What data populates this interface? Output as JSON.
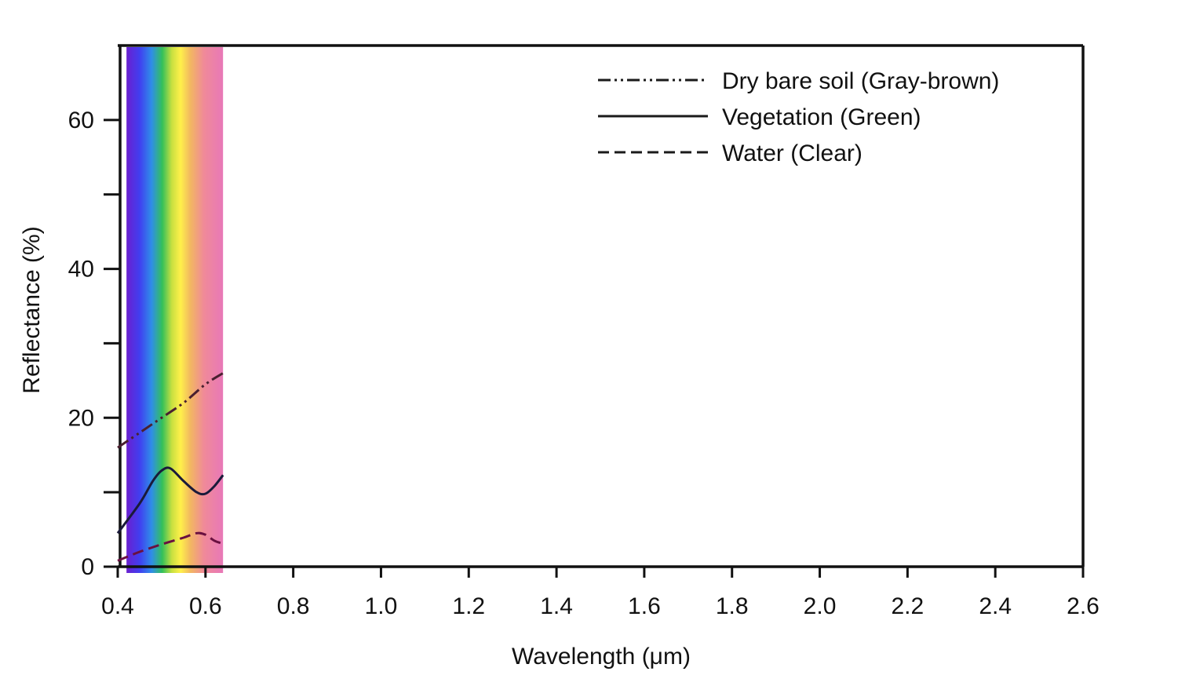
{
  "chart_data": {
    "type": "line",
    "xlabel": "Wavelength (μm)",
    "ylabel": "Reflectance (%)",
    "xlim": [
      0.4,
      2.6
    ],
    "ylim": [
      0,
      70
    ],
    "x_ticks": [
      "0.4",
      "0.6",
      "0.8",
      "1.0",
      "1.2",
      "1.4",
      "1.6",
      "1.8",
      "2.0",
      "2.2",
      "2.4",
      "2.6"
    ],
    "x_tick_values": [
      0.4,
      0.6,
      0.8,
      1.0,
      1.2,
      1.4,
      1.6,
      1.8,
      2.0,
      2.2,
      2.4,
      2.6
    ],
    "y_ticks": [
      "0",
      "20",
      "40",
      "60"
    ],
    "y_tick_values": [
      0,
      20,
      40,
      60
    ],
    "y_minor_ticks": [
      10,
      30,
      50
    ],
    "legend_position": "top-right",
    "grid": false,
    "visible_spectrum_band": {
      "from": 0.42,
      "to": 0.64
    },
    "series": [
      {
        "name": "Dry bare soil (Gray-brown)",
        "style": "dash-dot-dot",
        "color": "#4a2030",
        "x": [
          0.4,
          0.45,
          0.5,
          0.55,
          0.6,
          0.64
        ],
        "y": [
          16.0,
          18.0,
          20.0,
          22.0,
          24.5,
          26.0
        ]
      },
      {
        "name": "Vegetation (Green)",
        "style": "solid",
        "color": "#1a1a3a",
        "x": [
          0.4,
          0.45,
          0.48,
          0.5,
          0.52,
          0.55,
          0.58,
          0.6,
          0.62,
          0.64
        ],
        "y": [
          4.5,
          8.5,
          11.5,
          12.9,
          13.2,
          11.5,
          10.0,
          9.8,
          10.8,
          12.3
        ]
      },
      {
        "name": "Water (Clear)",
        "style": "dashed",
        "color": "#6a1040",
        "x": [
          0.4,
          0.45,
          0.5,
          0.55,
          0.58,
          0.6,
          0.62,
          0.64
        ],
        "y": [
          0.8,
          2.0,
          3.0,
          3.9,
          4.5,
          4.3,
          3.5,
          3.1
        ]
      }
    ]
  }
}
